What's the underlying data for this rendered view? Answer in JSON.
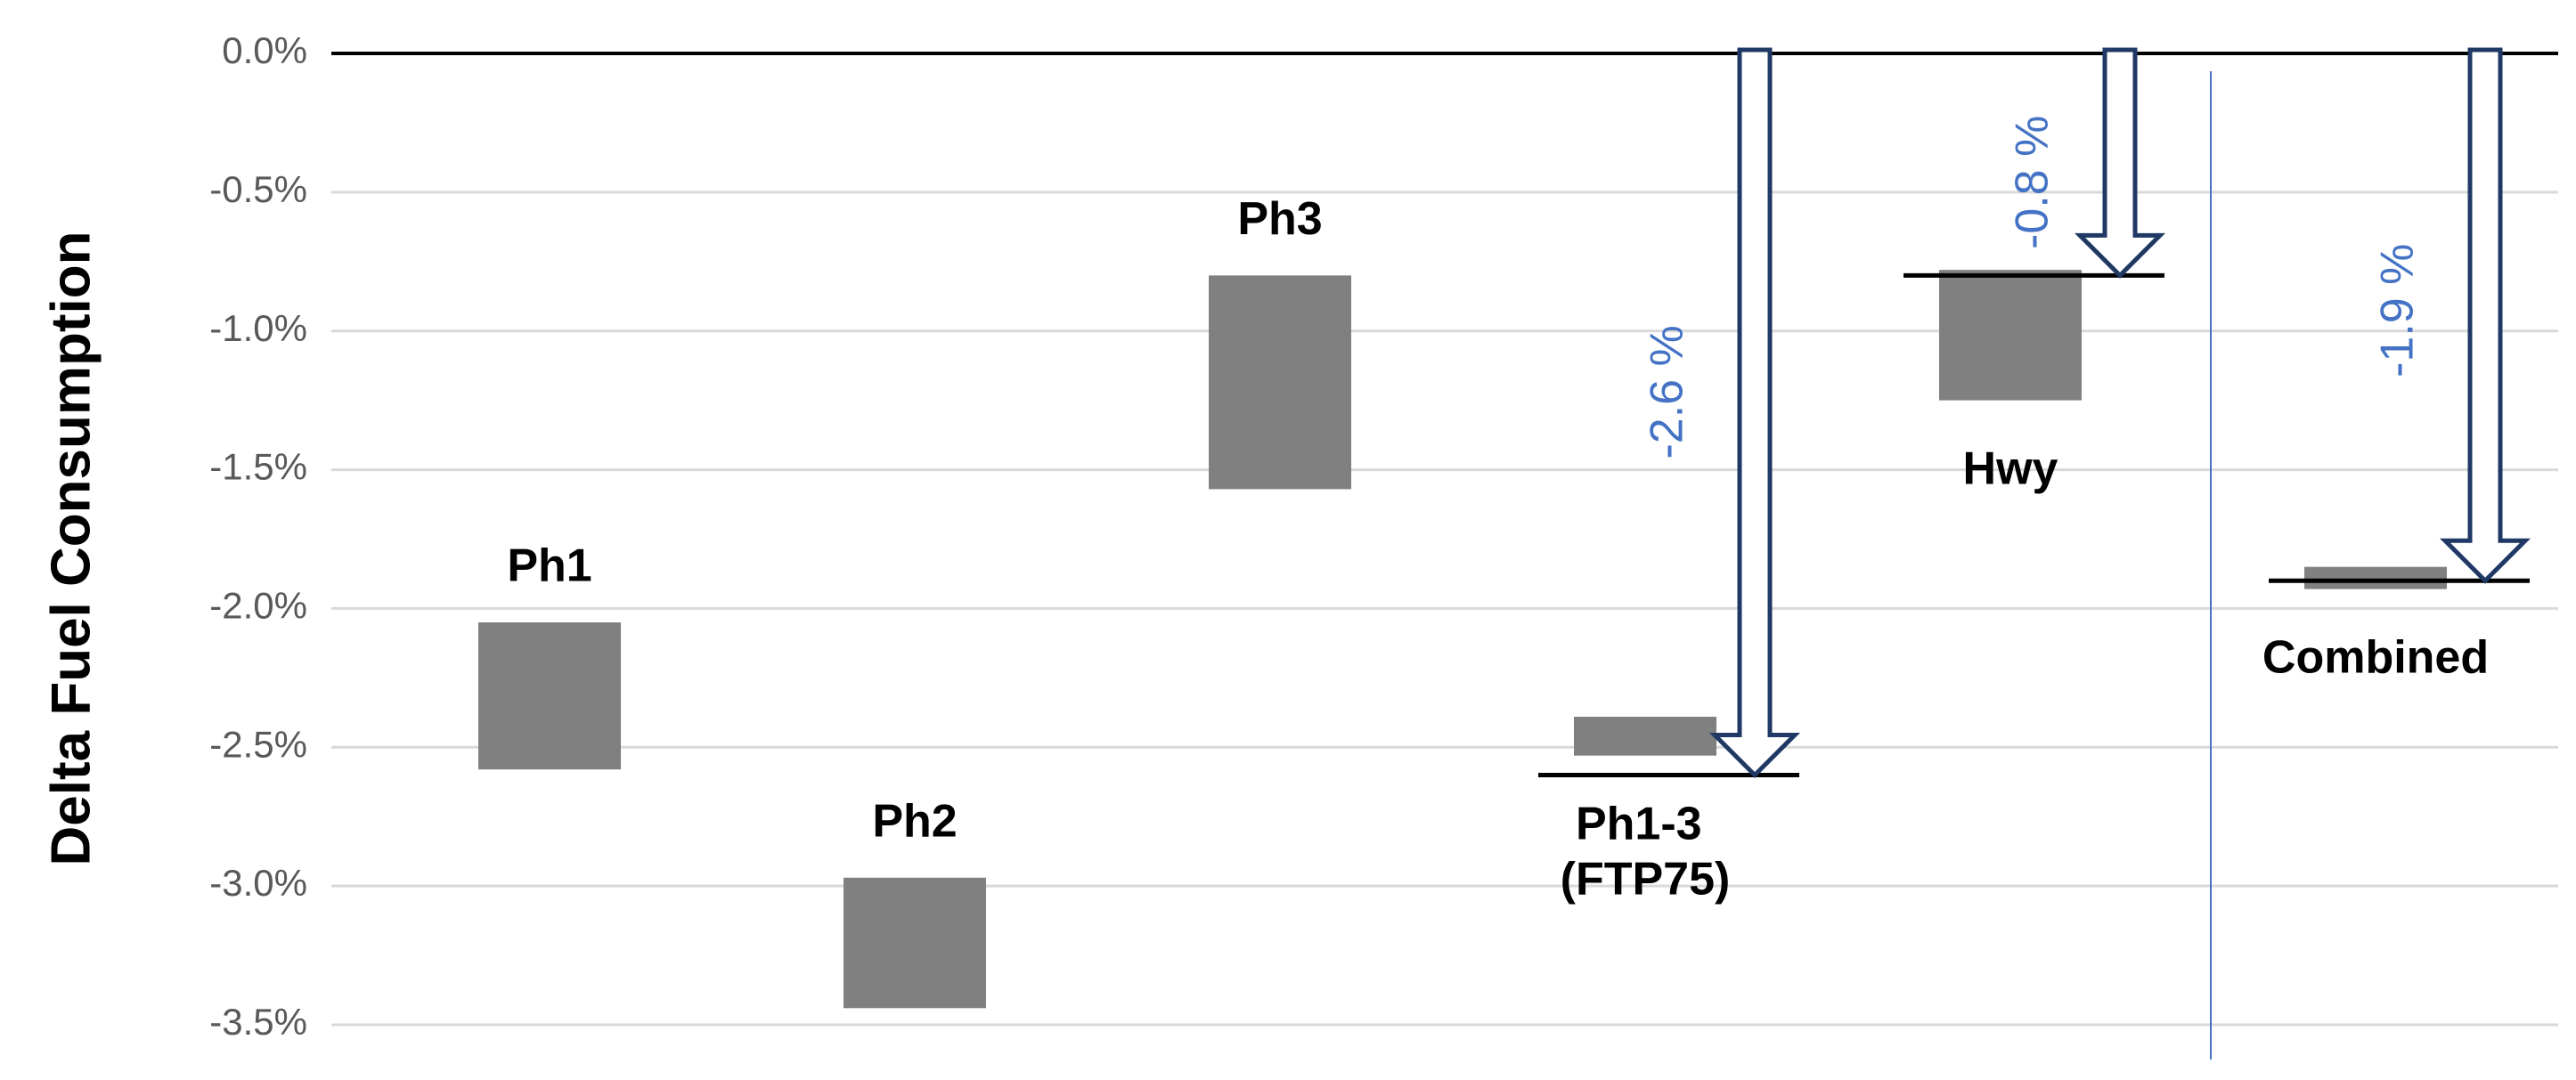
{
  "chart_data": {
    "type": "floating_bar",
    "y_label": "Delta Fuel Consumption",
    "categories": [
      "Ph1",
      "Ph2",
      "Ph3",
      "Ph1-3 (FTP75)",
      "Hwy",
      "Combined"
    ],
    "ranges": [
      [
        -2.05,
        -2.58
      ],
      [
        -2.97,
        -3.44
      ],
      [
        -0.8,
        -1.57
      ],
      [
        -2.39,
        -2.53
      ],
      [
        -0.78,
        -1.25
      ],
      [
        -1.85,
        -1.93
      ]
    ],
    "color": "#808080",
    "arrows": [
      null,
      null,
      null,
      {
        "value": -2.6,
        "label": "-2.6 %"
      },
      {
        "value": -0.8,
        "label": "-0.8 %"
      },
      {
        "value": -1.9,
        "label": "-1.9 %"
      }
    ],
    "arrow_color": "#1f3864",
    "ylim": [
      0,
      -3.5
    ],
    "yticks": [
      {
        "value": 0,
        "label": "0.0%"
      },
      {
        "value": -0.5,
        "label": "-0.5%"
      },
      {
        "value": -1,
        "label": "-1.0%"
      },
      {
        "value": -1.5,
        "label": "-1.5%"
      },
      {
        "value": -2,
        "label": "-2.0%"
      },
      {
        "value": -2.5,
        "label": "-2.5%"
      },
      {
        "value": -3,
        "label": "-3.0%"
      },
      {
        "value": -3.5,
        "label": "-3.5%"
      }
    ],
    "grid": true
  }
}
